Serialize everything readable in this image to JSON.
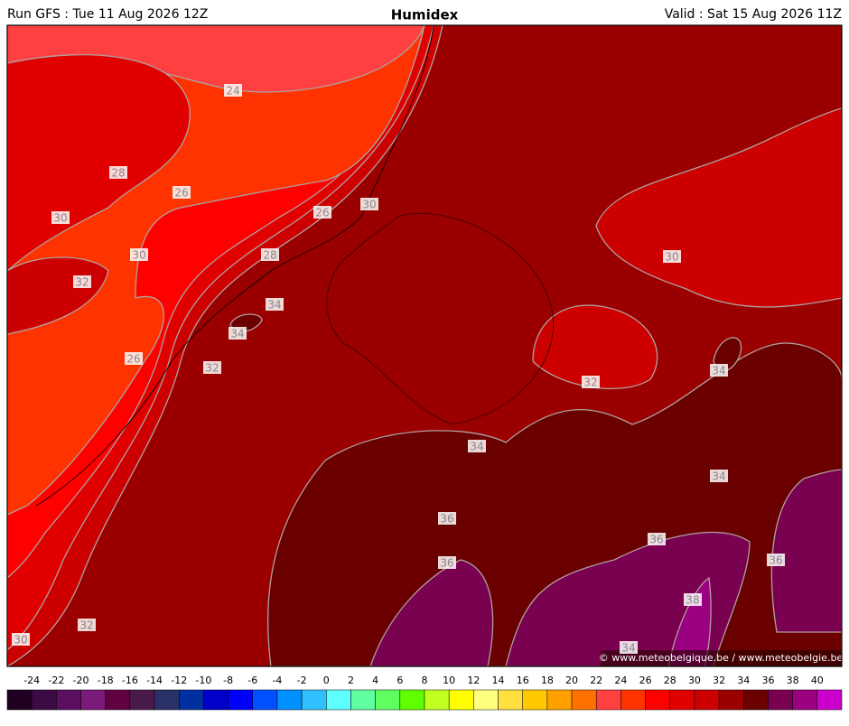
{
  "header": {
    "left": "Run GFS : Tue 11 Aug 2026 12Z",
    "title": "Humidex",
    "right": "Valid : Sat 15 Aug 2026 11Z"
  },
  "contour_labels": [
    24,
    28,
    26,
    30,
    26,
    30,
    30,
    28,
    32,
    34,
    34,
    26,
    32,
    30,
    34,
    32,
    34,
    34,
    36,
    36,
    36,
    36,
    38,
    32,
    30,
    34
  ],
  "credit": "© www.meteobelgique.be / www.meteobelgie.be",
  "colorbar": {
    "labels": [
      -24,
      -22,
      -20,
      -18,
      -16,
      -14,
      -12,
      -10,
      -8,
      -6,
      -4,
      -2,
      0,
      2,
      4,
      6,
      8,
      10,
      12,
      14,
      16,
      18,
      20,
      22,
      24,
      26,
      28,
      30,
      32,
      34,
      36,
      38,
      40
    ],
    "colors": [
      "#200020",
      "#3c0a45",
      "#5a0f60",
      "#7a1a7a",
      "#600040",
      "#4a1a4a",
      "#2a3068",
      "#0030a0",
      "#0000c8",
      "#0000ff",
      "#0050ff",
      "#0090ff",
      "#30c0ff",
      "#60ffff",
      "#60ffa0",
      "#60ff60",
      "#60ff00",
      "#c0ff20",
      "#ffff00",
      "#ffff80",
      "#ffe040",
      "#ffc800",
      "#ffa000",
      "#ff7000",
      "#ff4040",
      "#ff3300",
      "#ff0000",
      "#e00000",
      "#cc0000",
      "#9a0000",
      "#6a0000",
      "#7a0050",
      "#9a0080",
      "#cc00cc"
    ]
  }
}
